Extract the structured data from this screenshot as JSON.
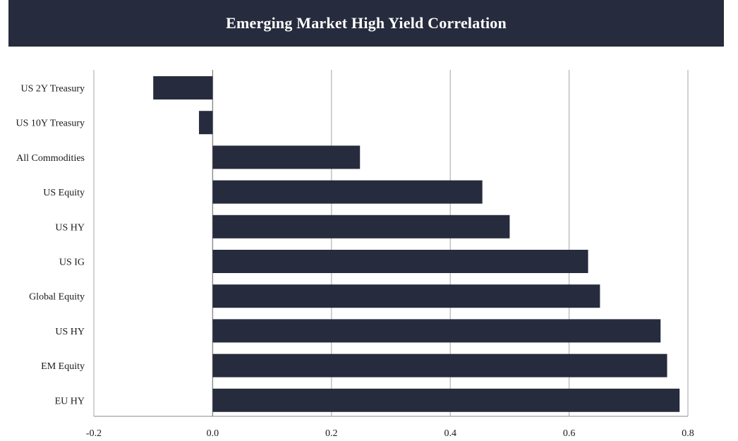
{
  "chart_data": {
    "type": "bar",
    "orientation": "horizontal",
    "title": "Emerging Market High Yield Correlation",
    "categories": [
      "US 2Y Treasury",
      "US 10Y Treasury",
      "All Commodities",
      "US Equity",
      "US HY",
      "US IG",
      "Global Equity",
      "US HY",
      "EM Equity",
      "EU HY"
    ],
    "values": [
      -0.1,
      -0.023,
      0.248,
      0.454,
      0.5,
      0.632,
      0.652,
      0.754,
      0.765,
      0.786
    ],
    "xlim": [
      -0.2,
      0.8
    ],
    "xticks": [
      "-0.2",
      "0.0",
      "0.2",
      "0.4",
      "0.6",
      "0.8"
    ],
    "xlabel": "",
    "ylabel": "",
    "grid": "vertical",
    "legend": "none",
    "colors": {
      "bar": "#262b3d",
      "grid": "#b3b3b3",
      "title_bg": "#262b3d",
      "title_text": "#ffffff"
    }
  }
}
